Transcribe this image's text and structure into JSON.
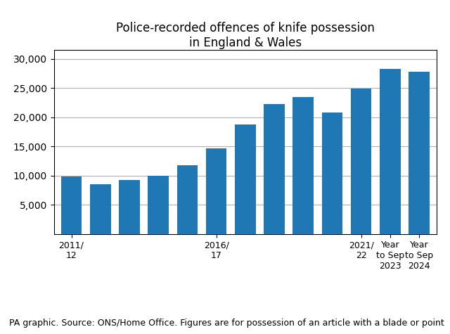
{
  "chart_data": {
    "type": "bar",
    "title": "Police-recorded offences of knife possession\nin England & Wales",
    "categories": [
      "2011/\n12",
      null,
      null,
      null,
      null,
      "2016/\n17",
      null,
      null,
      null,
      null,
      "2021/\n22",
      "Year\nto Sep\n2023",
      "Year\nto Sep\n2024"
    ],
    "values": [
      9800,
      8500,
      9200,
      10000,
      11700,
      14600,
      18700,
      22300,
      23500,
      20800,
      24900,
      28300,
      27800
    ],
    "ylim": [
      0,
      31500
    ],
    "yticks": [
      {
        "value": 5000,
        "label": "5,000"
      },
      {
        "value": 10000,
        "label": "10,000"
      },
      {
        "value": 15000,
        "label": "15,000"
      },
      {
        "value": 20000,
        "label": "20,000"
      },
      {
        "value": 25000,
        "label": "25,000"
      },
      {
        "value": 30000,
        "label": "30,000"
      }
    ],
    "grid": "y",
    "annotations": [
      "PA graphic. Source: ONS/Home Office. Figures are for possession of an article with a blade or point"
    ]
  }
}
